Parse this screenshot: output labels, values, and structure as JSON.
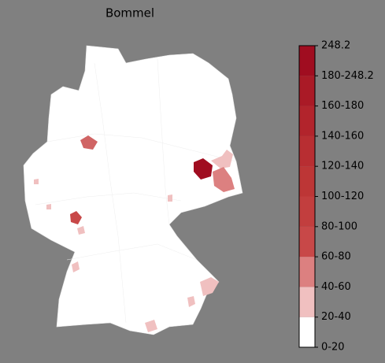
{
  "title": "Bommel",
  "colorbar": {
    "labels": [
      "0-20",
      "20-40",
      "40-60",
      "60-80",
      "80-100",
      "100-120",
      "120-140",
      "140-160",
      "160-180",
      "180-248.2",
      "248.2"
    ],
    "colors": [
      "#ffffff",
      "#f0c0c0",
      "#dc8080",
      "#c84848",
      "#c23e3e",
      "#bd3636",
      "#b82e32",
      "#b2242c",
      "#aa1a26",
      "#a00d20"
    ]
  }
}
